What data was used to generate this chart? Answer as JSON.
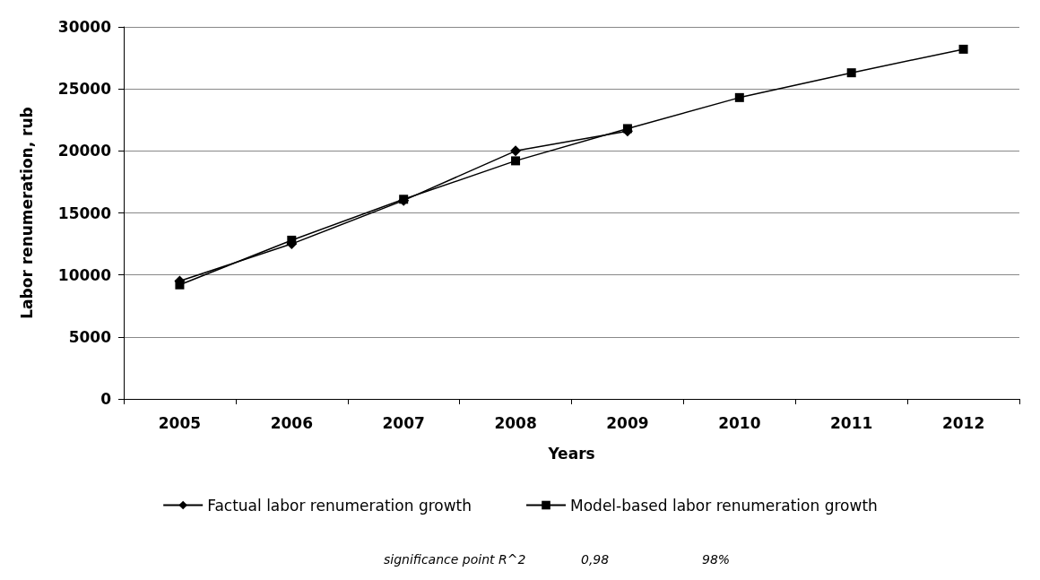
{
  "chart_data": {
    "type": "line",
    "xlabel": "Years",
    "ylabel": "Labor renumeration, rub",
    "categories": [
      "2005",
      "2006",
      "2007",
      "2008",
      "2009",
      "2010",
      "2011",
      "2012"
    ],
    "series": [
      {
        "name": "Factual labor renumeration growth",
        "color": "#000000",
        "marker": "diamond",
        "values": [
          9500,
          12500,
          16000,
          20000,
          21600,
          null,
          null,
          null
        ]
      },
      {
        "name": "Model-based labor renumeration growth",
        "color": "#000000",
        "marker": "square",
        "values": [
          9200,
          12800,
          16100,
          19200,
          21800,
          24300,
          26300,
          28200
        ]
      }
    ],
    "ylim": [
      0,
      30000
    ],
    "yticks": [
      0,
      5000,
      10000,
      15000,
      20000,
      25000,
      30000
    ],
    "grid": "y",
    "legend": "bottom",
    "annotations": [
      "significance point R^2",
      "0,98",
      "98%"
    ]
  }
}
